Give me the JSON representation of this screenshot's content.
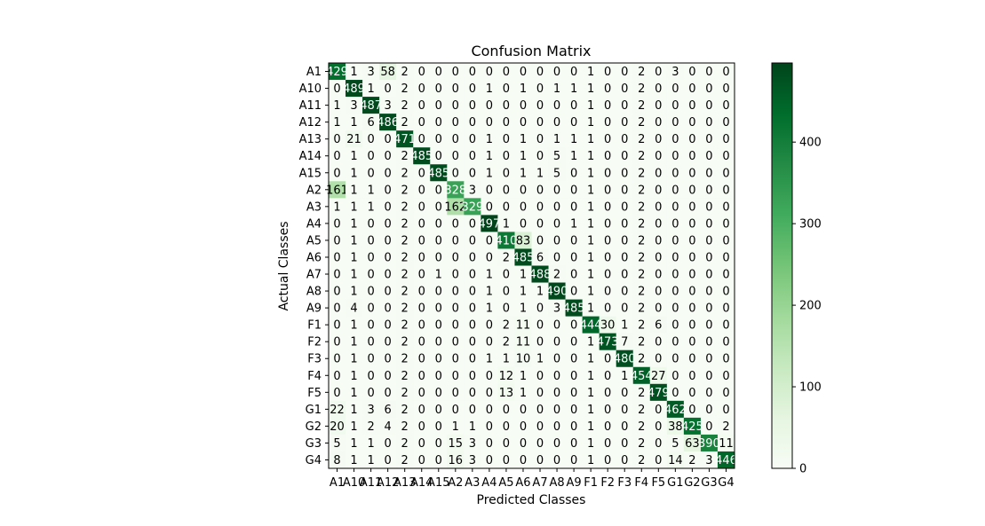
{
  "chart_data": {
    "type": "heatmap",
    "title": "Confusion Matrix",
    "xlabel": "Predicted Classes",
    "ylabel": "Actual Classes",
    "classes": [
      "A1",
      "A10",
      "A11",
      "A12",
      "A13",
      "A14",
      "A15",
      "A2",
      "A3",
      "A4",
      "A5",
      "A6",
      "A7",
      "A8",
      "A9",
      "F1",
      "F2",
      "F3",
      "F4",
      "F5",
      "G1",
      "G2",
      "G3",
      "G4"
    ],
    "matrix": [
      [
        429,
        1,
        3,
        58,
        2,
        0,
        0,
        0,
        0,
        0,
        0,
        0,
        0,
        0,
        0,
        1,
        0,
        0,
        2,
        0,
        3,
        0,
        0,
        0
      ],
      [
        0,
        489,
        1,
        0,
        2,
        0,
        0,
        0,
        0,
        1,
        0,
        1,
        0,
        1,
        1,
        1,
        0,
        0,
        2,
        0,
        0,
        0,
        0,
        0
      ],
      [
        1,
        3,
        487,
        3,
        2,
        0,
        0,
        0,
        0,
        0,
        0,
        0,
        0,
        0,
        0,
        1,
        0,
        0,
        2,
        0,
        0,
        0,
        0,
        0
      ],
      [
        1,
        1,
        6,
        486,
        2,
        0,
        0,
        0,
        0,
        0,
        0,
        0,
        0,
        0,
        0,
        1,
        0,
        0,
        2,
        0,
        0,
        0,
        0,
        0
      ],
      [
        0,
        21,
        0,
        0,
        471,
        0,
        0,
        0,
        0,
        1,
        0,
        1,
        0,
        1,
        1,
        1,
        0,
        0,
        2,
        0,
        0,
        0,
        0,
        0
      ],
      [
        0,
        1,
        0,
        0,
        2,
        485,
        0,
        0,
        0,
        1,
        0,
        1,
        0,
        5,
        1,
        1,
        0,
        0,
        2,
        0,
        0,
        0,
        0,
        0
      ],
      [
        0,
        1,
        0,
        0,
        2,
        0,
        485,
        0,
        0,
        1,
        0,
        1,
        1,
        5,
        0,
        1,
        0,
        0,
        2,
        0,
        0,
        0,
        0,
        0
      ],
      [
        161,
        1,
        1,
        0,
        2,
        0,
        0,
        328,
        3,
        0,
        0,
        0,
        0,
        0,
        0,
        1,
        0,
        0,
        2,
        0,
        0,
        0,
        0,
        0
      ],
      [
        1,
        1,
        1,
        0,
        2,
        0,
        0,
        162,
        329,
        0,
        0,
        0,
        0,
        0,
        0,
        1,
        0,
        0,
        2,
        0,
        0,
        0,
        0,
        0
      ],
      [
        0,
        1,
        0,
        0,
        2,
        0,
        0,
        0,
        0,
        497,
        1,
        0,
        0,
        0,
        1,
        1,
        0,
        0,
        2,
        0,
        0,
        0,
        0,
        0
      ],
      [
        0,
        1,
        0,
        0,
        2,
        0,
        0,
        0,
        0,
        0,
        410,
        83,
        0,
        0,
        0,
        1,
        0,
        0,
        2,
        0,
        0,
        0,
        0,
        0
      ],
      [
        0,
        1,
        0,
        0,
        2,
        0,
        0,
        0,
        0,
        0,
        2,
        485,
        6,
        0,
        0,
        1,
        0,
        0,
        2,
        0,
        0,
        0,
        0,
        0
      ],
      [
        0,
        1,
        0,
        0,
        2,
        0,
        1,
        0,
        0,
        1,
        0,
        1,
        488,
        2,
        0,
        1,
        0,
        0,
        2,
        0,
        0,
        0,
        0,
        0
      ],
      [
        0,
        1,
        0,
        0,
        2,
        0,
        0,
        0,
        0,
        1,
        0,
        1,
        1,
        490,
        0,
        1,
        0,
        0,
        2,
        0,
        0,
        0,
        0,
        0
      ],
      [
        0,
        4,
        0,
        0,
        2,
        0,
        0,
        0,
        0,
        1,
        0,
        1,
        0,
        3,
        485,
        1,
        0,
        0,
        2,
        0,
        0,
        0,
        0,
        0
      ],
      [
        0,
        1,
        0,
        0,
        2,
        0,
        0,
        0,
        0,
        0,
        2,
        11,
        0,
        0,
        0,
        444,
        30,
        1,
        2,
        6,
        0,
        0,
        0,
        0
      ],
      [
        0,
        1,
        0,
        0,
        2,
        0,
        0,
        0,
        0,
        0,
        2,
        11,
        0,
        0,
        0,
        1,
        473,
        7,
        2,
        0,
        0,
        0,
        0,
        0
      ],
      [
        0,
        1,
        0,
        0,
        2,
        0,
        0,
        0,
        0,
        1,
        1,
        10,
        1,
        0,
        0,
        1,
        0,
        480,
        2,
        0,
        0,
        0,
        0,
        0
      ],
      [
        0,
        1,
        0,
        0,
        2,
        0,
        0,
        0,
        0,
        0,
        12,
        1,
        0,
        0,
        0,
        1,
        0,
        1,
        454,
        27,
        0,
        0,
        0,
        0
      ],
      [
        0,
        1,
        0,
        0,
        2,
        0,
        0,
        0,
        0,
        0,
        13,
        1,
        0,
        0,
        0,
        1,
        0,
        0,
        2,
        479,
        0,
        0,
        0,
        0
      ],
      [
        22,
        1,
        3,
        6,
        2,
        0,
        0,
        0,
        0,
        0,
        0,
        0,
        0,
        0,
        0,
        1,
        0,
        0,
        2,
        0,
        462,
        0,
        0,
        0
      ],
      [
        20,
        1,
        2,
        4,
        2,
        0,
        0,
        1,
        1,
        0,
        0,
        0,
        0,
        0,
        0,
        1,
        0,
        0,
        2,
        0,
        38,
        425,
        0,
        2
      ],
      [
        5,
        1,
        1,
        0,
        2,
        0,
        0,
        15,
        3,
        0,
        0,
        0,
        0,
        0,
        0,
        1,
        0,
        0,
        2,
        0,
        5,
        63,
        390,
        11
      ],
      [
        8,
        1,
        1,
        0,
        2,
        0,
        0,
        16,
        3,
        0,
        0,
        0,
        0,
        0,
        0,
        1,
        0,
        0,
        2,
        0,
        14,
        2,
        3,
        446
      ]
    ],
    "colorbar": {
      "min": 0,
      "max": 497,
      "ticks": [
        0,
        100,
        200,
        300,
        400
      ]
    },
    "colormap": [
      "#f7fcf5",
      "#e5f5e0",
      "#c7e9c0",
      "#a1d99b",
      "#74c476",
      "#41ab5d",
      "#238b45",
      "#006d2c",
      "#00441b"
    ],
    "grid": false
  }
}
